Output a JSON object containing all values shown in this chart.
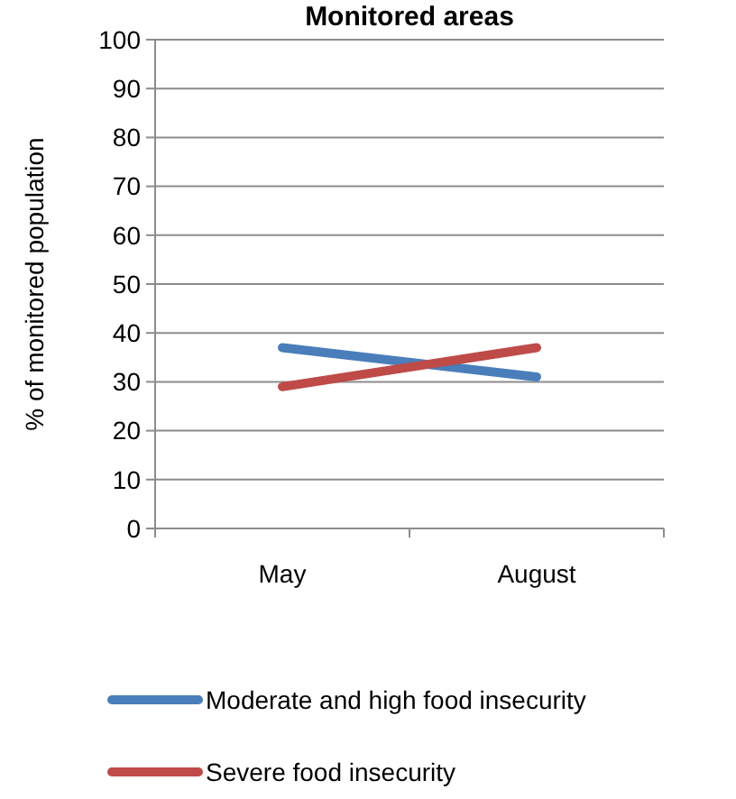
{
  "chart_data": {
    "type": "line",
    "title": "Monitored areas",
    "ylabel": "% of monitored population",
    "categories": [
      "May",
      "August"
    ],
    "series": [
      {
        "name": "Moderate and high food insecurity",
        "color": "#4a7ebb",
        "values": [
          37,
          31
        ]
      },
      {
        "name": "Severe food insecurity",
        "color": "#be4b48",
        "values": [
          29,
          37
        ]
      }
    ],
    "ylim": [
      0,
      100
    ],
    "yticks": [
      0,
      10,
      20,
      30,
      40,
      50,
      60,
      70,
      80,
      90,
      100
    ],
    "grid": "y",
    "legend": "bottom",
    "marker": "none",
    "line_style": "solid"
  }
}
